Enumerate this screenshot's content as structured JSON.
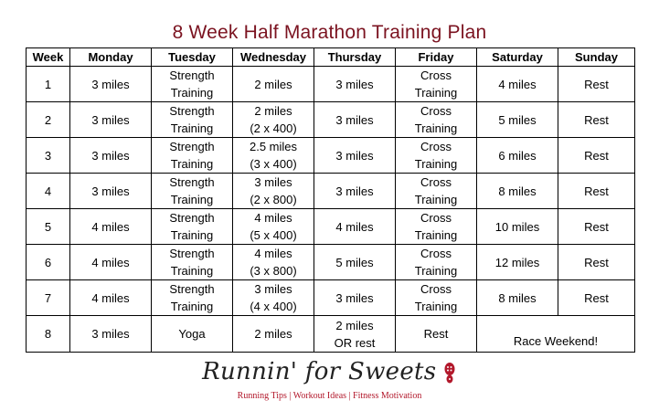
{
  "title": "8 Week Half Marathon Training Plan",
  "table": {
    "headers": [
      "Week",
      "Monday",
      "Tuesday",
      "Wednesday",
      "Thursday",
      "Friday",
      "Saturday",
      "Sunday"
    ],
    "rows": [
      {
        "week": "1",
        "monday": "3 miles",
        "tuesday": [
          "Strength",
          "Training"
        ],
        "wednesday": [
          "2 miles"
        ],
        "thursday": [
          "3 miles"
        ],
        "friday": [
          "Cross",
          "Training"
        ],
        "saturday": "4 miles",
        "sunday": "Rest"
      },
      {
        "week": "2",
        "monday": "3 miles",
        "tuesday": [
          "Strength",
          "Training"
        ],
        "wednesday": [
          "2 miles",
          "(2 x 400)"
        ],
        "thursday": [
          "3 miles"
        ],
        "friday": [
          "Cross",
          "Training"
        ],
        "saturday": "5 miles",
        "sunday": "Rest"
      },
      {
        "week": "3",
        "monday": "3 miles",
        "tuesday": [
          "Strength",
          "Training"
        ],
        "wednesday": [
          "2.5 miles",
          "(3 x 400)"
        ],
        "thursday": [
          "3 miles"
        ],
        "friday": [
          "Cross",
          "Training"
        ],
        "saturday": "6 miles",
        "sunday": "Rest"
      },
      {
        "week": "4",
        "monday": "3 miles",
        "tuesday": [
          "Strength",
          "Training"
        ],
        "wednesday": [
          "3 miles",
          "(2 x 800)"
        ],
        "thursday": [
          "3 miles"
        ],
        "friday": [
          "Cross",
          "Training"
        ],
        "saturday": "8 miles",
        "sunday": "Rest"
      },
      {
        "week": "5",
        "monday": "4 miles",
        "tuesday": [
          "Strength",
          "Training"
        ],
        "wednesday": [
          "4 miles",
          "(5 x 400)"
        ],
        "thursday": [
          "4 miles"
        ],
        "friday": [
          "Cross",
          "Training"
        ],
        "saturday": "10 miles",
        "sunday": "Rest"
      },
      {
        "week": "6",
        "monday": "4 miles",
        "tuesday": [
          "Strength",
          "Training"
        ],
        "wednesday": [
          "4 miles",
          "(3 x 800)"
        ],
        "thursday": [
          "5 miles"
        ],
        "friday": [
          "Cross",
          "Training"
        ],
        "saturday": "12 miles",
        "sunday": "Rest"
      },
      {
        "week": "7",
        "monday": "4 miles",
        "tuesday": [
          "Strength",
          "Training"
        ],
        "wednesday": [
          "3 miles",
          "(4 x 400)"
        ],
        "thursday": [
          "3 miles"
        ],
        "friday": [
          "Cross",
          "Training"
        ],
        "saturday": "8 miles",
        "sunday": "Rest"
      }
    ],
    "final_row": {
      "week": "8",
      "monday": "3 miles",
      "tuesday": "Yoga",
      "wednesday": "2 miles",
      "thursday": [
        "2 miles",
        "OR rest"
      ],
      "friday": "Rest",
      "weekend": "Race Weekend!"
    }
  },
  "logo": {
    "brand": "Runnin' for Sweets",
    "tagline": "Running Tips | Workout Ideas | Fitness Motivation",
    "icon": "running-shoe-icon",
    "color": "#b2182b"
  },
  "colors": {
    "title": "#7b1320",
    "border": "#000000"
  }
}
